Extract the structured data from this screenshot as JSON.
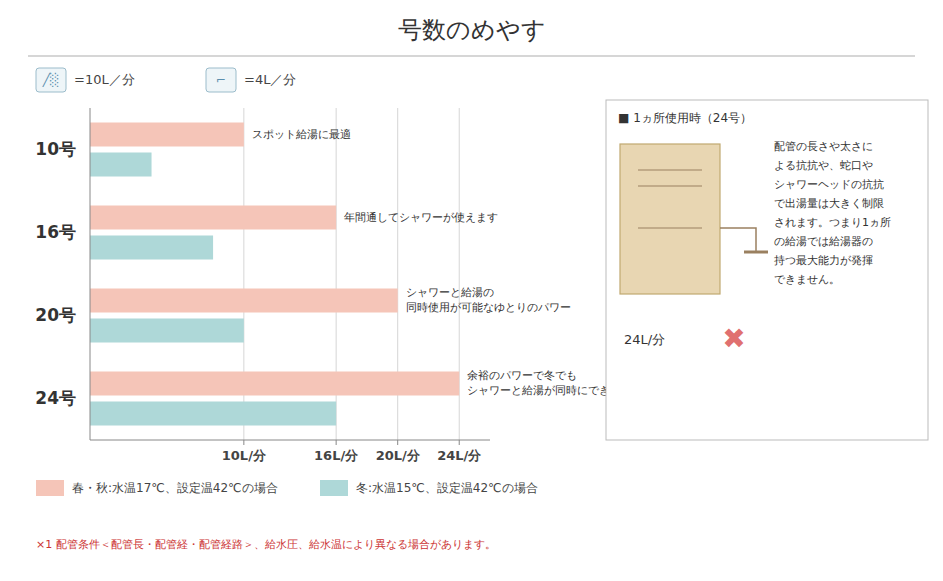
{
  "chart_data": {
    "type": "bar",
    "orientation": "horizontal",
    "title": "号数のめやす",
    "categories": [
      "10号",
      "16号",
      "20号",
      "24号"
    ],
    "series": [
      {
        "name": "春・秋:水温17℃、設定温42℃の場合",
        "color": "#f5c5b8",
        "values": [
          10,
          16,
          20,
          24
        ]
      },
      {
        "name": "冬:水温15℃、設定温42℃の場合",
        "color": "#aed8d8",
        "values": [
          4,
          8,
          10,
          16
        ]
      }
    ],
    "xlim": [
      0,
      26
    ],
    "xticks": [
      {
        "value": 10,
        "label": "10L/分"
      },
      {
        "value": 16,
        "label": "16L/分"
      },
      {
        "value": 20,
        "label": "20L/分"
      },
      {
        "value": 24,
        "label": "24L/分"
      }
    ],
    "grid": true,
    "legend": "bottom",
    "annotations": [
      {
        "text": "スポット給湯に最適"
      },
      {
        "text": "年間通してシャワーが使えます"
      },
      {
        "text": "シャワーと給湯の\n同時使用が可能なゆとりのパワー"
      },
      {
        "text": "余裕のパワーで冬でも\nシャワーと給湯が同時にできます"
      },
      {
        "text": "╱░"
      },
      {
        "text": "=10L／分"
      },
      {
        "text": "⌐"
      },
      {
        "text": "=4L／分"
      },
      {
        "text": "■ 1ヵ所使用時（24号）"
      },
      {
        "text": "24L/分"
      },
      {
        "text": "✖",
        "color": "#e07070"
      },
      {
        "text": "配管の長さや太さに\nよる抗抗や、蛇口や\nシャワーヘッドの抗抗\nで出湯量は大きく制限\nされます。つまり1ヵ所\nの給湯では給湯器の\n持つ最大能力が発揮\nできません。"
      },
      {
        "text": "×1 配管条件＜配管長・配管経・配管経路＞、給水圧、給水温により異なる場合があります。",
        "color": "#cc3333"
      }
    ]
  }
}
